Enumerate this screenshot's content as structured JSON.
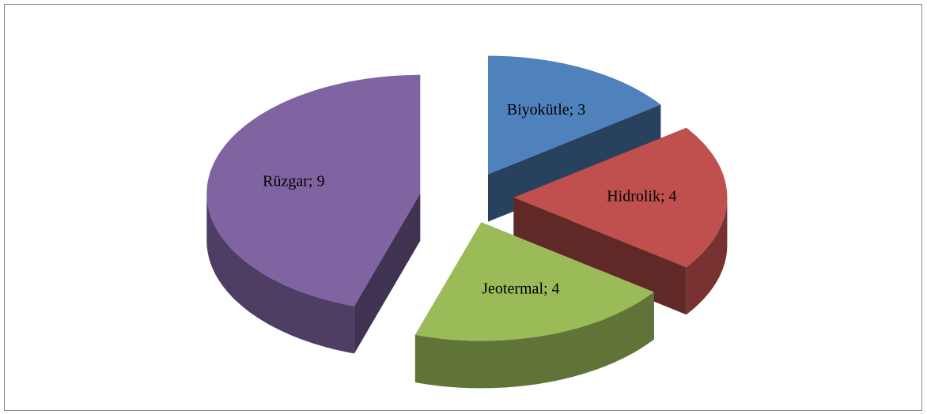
{
  "chart_data": {
    "type": "pie3d",
    "categories": [
      "Biyokütle",
      "Hidrolik",
      "Jeotermal",
      "Rüzgar"
    ],
    "values": [
      3,
      4,
      4,
      9
    ],
    "value_labels": [
      "Biyokütle; 3",
      "Hidrolik; 4",
      "Jeotermal; 4",
      "Rüzgar; 9"
    ],
    "colors": [
      "#4f81bd",
      "#c0504d",
      "#9bbb59",
      "#8064a2"
    ]
  }
}
